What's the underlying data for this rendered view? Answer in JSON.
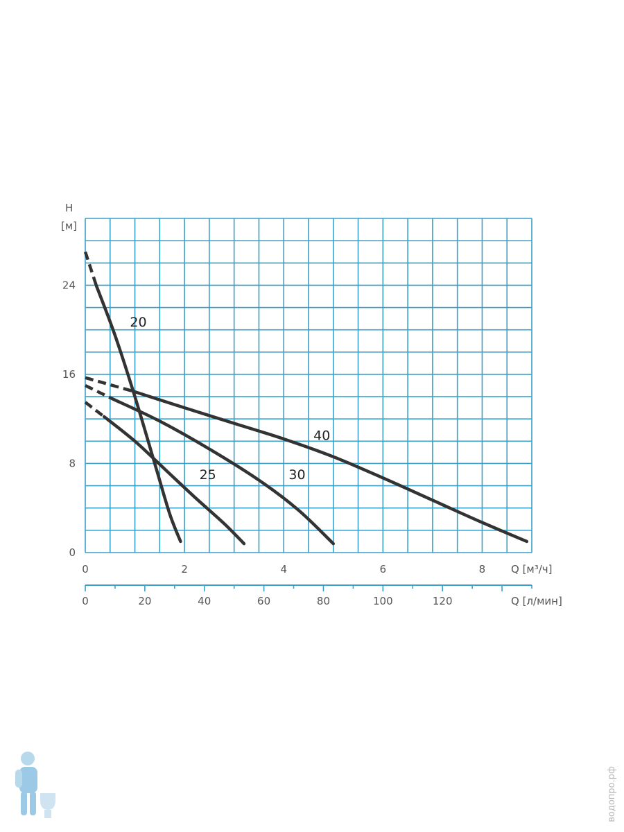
{
  "chart_data": {
    "type": "line",
    "colors": {
      "grid": "#3aa0c8",
      "curve": "#333333",
      "axis": "#3aa0c8",
      "text": "#555555"
    },
    "y_axis": {
      "title_top": "H",
      "title_unit": "[м]",
      "ticks": [
        0,
        8,
        16,
        24
      ],
      "range": [
        0,
        30
      ],
      "grid_step": 2
    },
    "x_axis": {
      "title": "Q [м³/ч]",
      "ticks": [
        0,
        2,
        4,
        6,
        8
      ],
      "range": [
        0,
        9
      ],
      "grid_step": 0.5
    },
    "x2_axis": {
      "title": "Q [л/мин]",
      "ticks": [
        0,
        20,
        40,
        60,
        80,
        100,
        120
      ],
      "range": [
        0,
        150
      ]
    },
    "series": [
      {
        "name": "20",
        "label_at": [
          0.9,
          20.3
        ],
        "dashed": [
          [
            0.0,
            27.0
          ],
          [
            0.22,
            24.0
          ]
        ],
        "points": [
          [
            0.22,
            24.0
          ],
          [
            0.6,
            19.5
          ],
          [
            1.0,
            14.0
          ],
          [
            1.4,
            8.0
          ],
          [
            1.7,
            3.5
          ],
          [
            1.92,
            1.0
          ]
        ]
      },
      {
        "name": "25",
        "label_at": [
          2.3,
          6.6
        ],
        "dashed": [
          [
            0.0,
            13.5
          ],
          [
            0.38,
            12.2
          ]
        ],
        "points": [
          [
            0.38,
            12.2
          ],
          [
            1.0,
            10.0
          ],
          [
            1.6,
            7.5
          ],
          [
            2.2,
            5.0
          ],
          [
            2.8,
            2.6
          ],
          [
            3.2,
            0.8
          ]
        ]
      },
      {
        "name": "30",
        "label_at": [
          4.1,
          6.6
        ],
        "dashed": [
          [
            0.0,
            15.0
          ],
          [
            0.55,
            13.8
          ]
        ],
        "points": [
          [
            0.55,
            13.8
          ],
          [
            1.5,
            11.8
          ],
          [
            2.5,
            9.3
          ],
          [
            3.5,
            6.5
          ],
          [
            4.3,
            3.8
          ],
          [
            5.0,
            0.8
          ]
        ]
      },
      {
        "name": "40",
        "label_at": [
          4.6,
          10.1
        ],
        "dashed": [
          [
            0.0,
            15.7
          ],
          [
            0.95,
            14.5
          ]
        ],
        "points": [
          [
            0.95,
            14.5
          ],
          [
            2.0,
            13.0
          ],
          [
            3.0,
            11.6
          ],
          [
            4.0,
            10.2
          ],
          [
            5.0,
            8.6
          ],
          [
            6.0,
            6.7
          ],
          [
            7.0,
            4.7
          ],
          [
            8.0,
            2.7
          ],
          [
            8.9,
            1.0
          ]
        ]
      }
    ]
  },
  "watermark": {
    "text": "водопро.рф"
  }
}
